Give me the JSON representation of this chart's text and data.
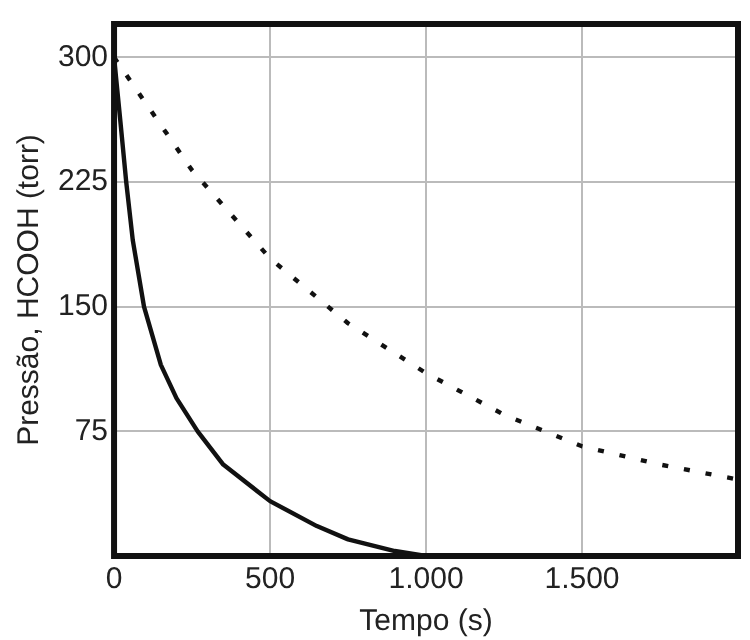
{
  "chart_data": {
    "type": "line",
    "xlabel": "Tempo (s)",
    "ylabel": "Pressão, HCOOH (torr)",
    "xlim": [
      0,
      2000
    ],
    "ylim": [
      0,
      320
    ],
    "xticks": [
      0,
      500,
      {
        "value": 1000,
        "label": "1.000"
      },
      {
        "value": 1500,
        "label": "1.500"
      }
    ],
    "yticks": [
      75,
      150,
      225,
      300
    ],
    "grid": true,
    "marker": "none",
    "series": [
      {
        "color": "#111111",
        "line_style": "solid",
        "x": [
          0,
          20,
          39,
          60,
          96,
          150,
          200,
          268,
          350,
          500,
          650,
          750,
          900,
          1000
        ],
        "values": [
          300,
          262,
          225,
          190,
          150,
          115,
          95,
          75,
          55,
          33,
          18,
          10,
          3,
          0
        ]
      },
      {
        "color": "#111111",
        "line_style": "dashed",
        "x": [
          0,
          250,
          500,
          750,
          1000,
          1250,
          1500,
          1750,
          2000
        ],
        "values": [
          300,
          232,
          179,
          140,
          110,
          85,
          66,
          55,
          46
        ]
      }
    ]
  }
}
